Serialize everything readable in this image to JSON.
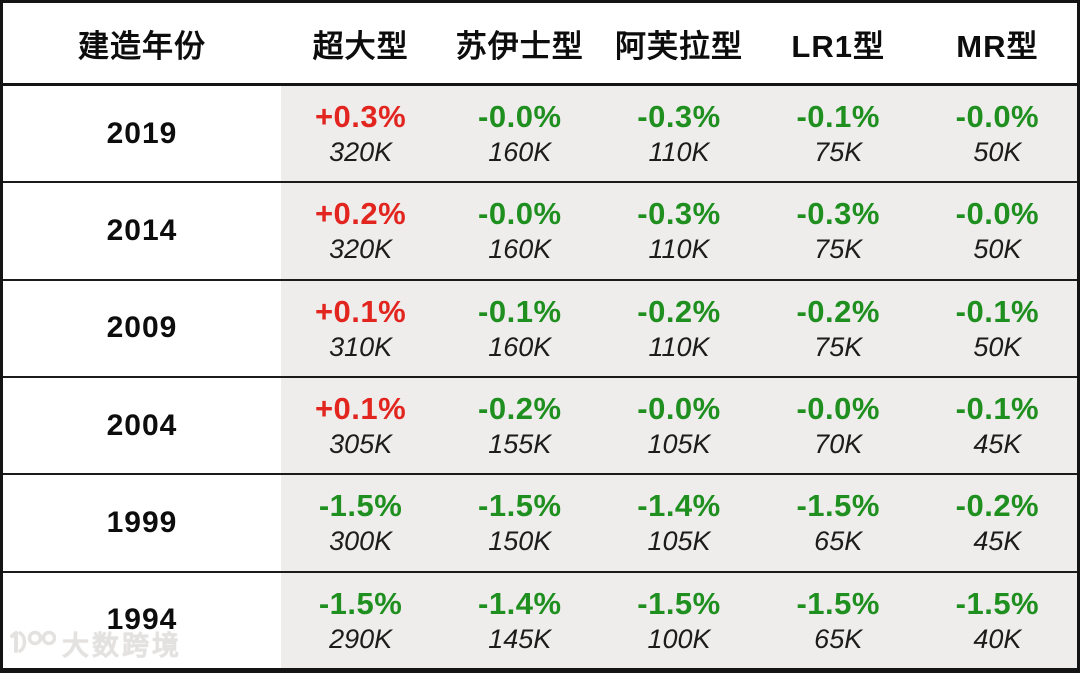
{
  "table": {
    "columns": [
      {
        "label": "建造年份",
        "key": "year"
      },
      {
        "label": "超大型",
        "key": "vlcc"
      },
      {
        "label": "苏伊士型",
        "key": "suezmax"
      },
      {
        "label": "阿芙拉型",
        "key": "aframax"
      },
      {
        "label": "LR1型",
        "key": "lr1"
      },
      {
        "label": "MR型",
        "key": "mr"
      }
    ],
    "rows": [
      {
        "year": "2019",
        "cells": [
          {
            "pct": "+0.3%",
            "trend": "positive",
            "size": "320K"
          },
          {
            "pct": "-0.0%",
            "trend": "negative",
            "size": "160K"
          },
          {
            "pct": "-0.3%",
            "trend": "negative",
            "size": "110K"
          },
          {
            "pct": "-0.1%",
            "trend": "negative",
            "size": "75K"
          },
          {
            "pct": "-0.0%",
            "trend": "negative",
            "size": "50K"
          }
        ]
      },
      {
        "year": "2014",
        "cells": [
          {
            "pct": "+0.2%",
            "trend": "positive",
            "size": "320K"
          },
          {
            "pct": "-0.0%",
            "trend": "negative",
            "size": "160K"
          },
          {
            "pct": "-0.3%",
            "trend": "negative",
            "size": "110K"
          },
          {
            "pct": "-0.3%",
            "trend": "negative",
            "size": "75K"
          },
          {
            "pct": "-0.0%",
            "trend": "negative",
            "size": "50K"
          }
        ]
      },
      {
        "year": "2009",
        "cells": [
          {
            "pct": "+0.1%",
            "trend": "positive",
            "size": "310K"
          },
          {
            "pct": "-0.1%",
            "trend": "negative",
            "size": "160K"
          },
          {
            "pct": "-0.2%",
            "trend": "negative",
            "size": "110K"
          },
          {
            "pct": "-0.2%",
            "trend": "negative",
            "size": "75K"
          },
          {
            "pct": "-0.1%",
            "trend": "negative",
            "size": "50K"
          }
        ]
      },
      {
        "year": "2004",
        "cells": [
          {
            "pct": "+0.1%",
            "trend": "positive",
            "size": "305K"
          },
          {
            "pct": "-0.2%",
            "trend": "negative",
            "size": "155K"
          },
          {
            "pct": "-0.0%",
            "trend": "negative",
            "size": "105K"
          },
          {
            "pct": "-0.0%",
            "trend": "negative",
            "size": "70K"
          },
          {
            "pct": "-0.1%",
            "trend": "negative",
            "size": "45K"
          }
        ]
      },
      {
        "year": "1999",
        "cells": [
          {
            "pct": "-1.5%",
            "trend": "negative",
            "size": "300K"
          },
          {
            "pct": "-1.5%",
            "trend": "negative",
            "size": "150K"
          },
          {
            "pct": "-1.4%",
            "trend": "negative",
            "size": "105K"
          },
          {
            "pct": "-1.5%",
            "trend": "negative",
            "size": "65K"
          },
          {
            "pct": "-0.2%",
            "trend": "negative",
            "size": "45K"
          }
        ]
      },
      {
        "year": "1994",
        "cells": [
          {
            "pct": "-1.5%",
            "trend": "negative",
            "size": "290K"
          },
          {
            "pct": "-1.4%",
            "trend": "negative",
            "size": "145K"
          },
          {
            "pct": "-1.5%",
            "trend": "negative",
            "size": "100K"
          },
          {
            "pct": "-1.5%",
            "trend": "negative",
            "size": "65K"
          },
          {
            "pct": "-1.5%",
            "trend": "negative",
            "size": "40K"
          }
        ]
      }
    ]
  },
  "chart_data": {
    "type": "table",
    "title": "",
    "columns": [
      "建造年份",
      "超大型",
      "苏伊士型",
      "阿芙拉型",
      "LR1型",
      "MR型"
    ],
    "categories": [
      "2019",
      "2014",
      "2009",
      "2004",
      "1999",
      "1994"
    ],
    "series": [
      {
        "name": "超大型 pct",
        "values": [
          0.3,
          0.2,
          0.1,
          0.1,
          -1.5,
          -1.5
        ]
      },
      {
        "name": "超大型 size",
        "values": [
          "320K",
          "320K",
          "310K",
          "305K",
          "300K",
          "290K"
        ]
      },
      {
        "name": "苏伊士型 pct",
        "values": [
          -0.0,
          -0.0,
          -0.1,
          -0.2,
          -1.5,
          -1.4
        ]
      },
      {
        "name": "苏伊士型 size",
        "values": [
          "160K",
          "160K",
          "160K",
          "155K",
          "150K",
          "145K"
        ]
      },
      {
        "name": "阿芙拉型 pct",
        "values": [
          -0.3,
          -0.3,
          -0.2,
          -0.0,
          -1.4,
          -1.5
        ]
      },
      {
        "name": "阿芙拉型 size",
        "values": [
          "110K",
          "110K",
          "110K",
          "105K",
          "105K",
          "100K"
        ]
      },
      {
        "name": "LR1型 pct",
        "values": [
          -0.1,
          -0.3,
          -0.2,
          -0.0,
          -1.5,
          -1.5
        ]
      },
      {
        "name": "LR1型 size",
        "values": [
          "75K",
          "75K",
          "75K",
          "70K",
          "65K",
          "65K"
        ]
      },
      {
        "name": "MR型 pct",
        "values": [
          -0.0,
          -0.0,
          -0.1,
          -0.1,
          -0.2,
          -1.5
        ]
      },
      {
        "name": "MR型 size",
        "values": [
          "50K",
          "50K",
          "50K",
          "45K",
          "45K",
          "40K"
        ]
      }
    ]
  },
  "watermark": {
    "text": "大数跨境"
  },
  "colors": {
    "positive": "#e2251f",
    "negative": "#1f8f1f",
    "cell_bg": "#eeedec",
    "border": "#141414",
    "size_text": "#1c1c1c"
  }
}
